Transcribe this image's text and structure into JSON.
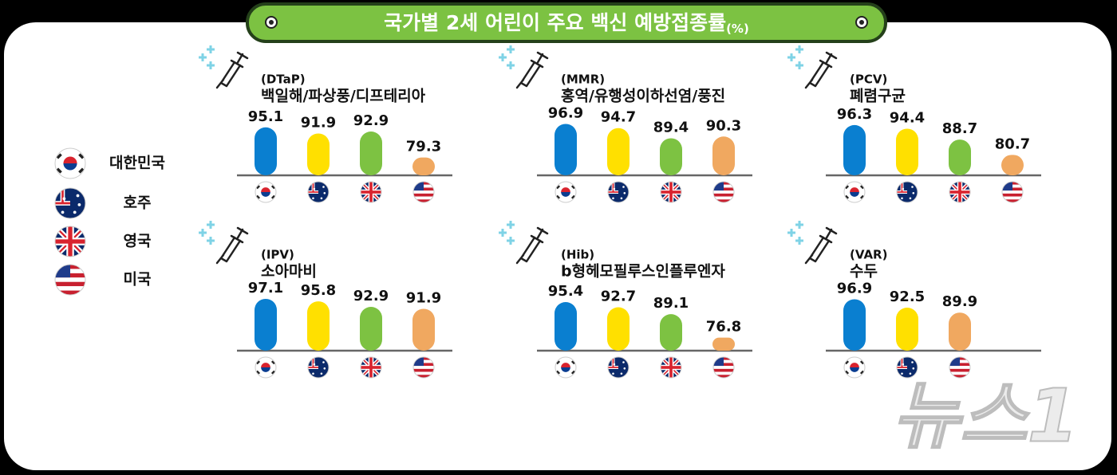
{
  "title": "국가별 2세 어린이 주요 백신 예방접종률",
  "unit": "(%)",
  "legend": [
    {
      "name": "대한민국",
      "color": "#0a7fd0"
    },
    {
      "name": "호주",
      "color": "#ffe000"
    },
    {
      "name": "영국",
      "color": "#7dc242"
    },
    {
      "name": "미국",
      "color": "#f0a860"
    }
  ],
  "watermark": "뉴스1",
  "chart_data": [
    {
      "type": "bar",
      "code": "(DTaP)",
      "title": "백일해/파상풍/디프테리아",
      "categories": [
        null,
        null,
        null,
        null
      ],
      "values": [
        95.1,
        91.9,
        92.9,
        79.3
      ],
      "colors": [
        "#0a7fd0",
        "#ffe000",
        "#7dc242",
        "#f0a860"
      ],
      "ylim": [
        70,
        100
      ]
    },
    {
      "type": "bar",
      "code": "(MMR)",
      "title": "홍역/유행성이하선염/풍진",
      "categories": [
        null,
        null,
        null,
        null
      ],
      "values": [
        96.9,
        94.7,
        89.4,
        90.3
      ],
      "colors": [
        "#0a7fd0",
        "#ffe000",
        "#7dc242",
        "#f0a860"
      ],
      "ylim": [
        70,
        100
      ]
    },
    {
      "type": "bar",
      "code": "(PCV)",
      "title": "폐렴구균",
      "categories": [
        null,
        null,
        null,
        null
      ],
      "values": [
        96.3,
        94.4,
        88.7,
        80.7
      ],
      "colors": [
        "#0a7fd0",
        "#ffe000",
        "#7dc242",
        "#f0a860"
      ],
      "ylim": [
        70,
        100
      ]
    },
    {
      "type": "bar",
      "code": "(IPV)",
      "title": "소아마비",
      "categories": [
        null,
        null,
        null,
        null
      ],
      "values": [
        97.1,
        95.8,
        92.9,
        91.9
      ],
      "colors": [
        "#0a7fd0",
        "#ffe000",
        "#7dc242",
        "#f0a860"
      ],
      "ylim": [
        70,
        100
      ]
    },
    {
      "type": "bar",
      "code": "(Hib)",
      "title": "b형헤모필루스인플루엔자",
      "categories": [
        null,
        null,
        null,
        null
      ],
      "values": [
        95.4,
        92.7,
        89.1,
        76.8
      ],
      "colors": [
        "#0a7fd0",
        "#ffe000",
        "#7dc242",
        "#f0a860"
      ],
      "ylim": [
        70,
        100
      ]
    },
    {
      "type": "bar",
      "code": "(VAR)",
      "title": "수두",
      "categories": [
        null,
        null,
        null
      ],
      "values": [
        96.9,
        92.5,
        89.9
      ],
      "colors": [
        "#0a7fd0",
        "#ffe000",
        "#f0a860"
      ],
      "ylim": [
        70,
        100
      ]
    }
  ]
}
